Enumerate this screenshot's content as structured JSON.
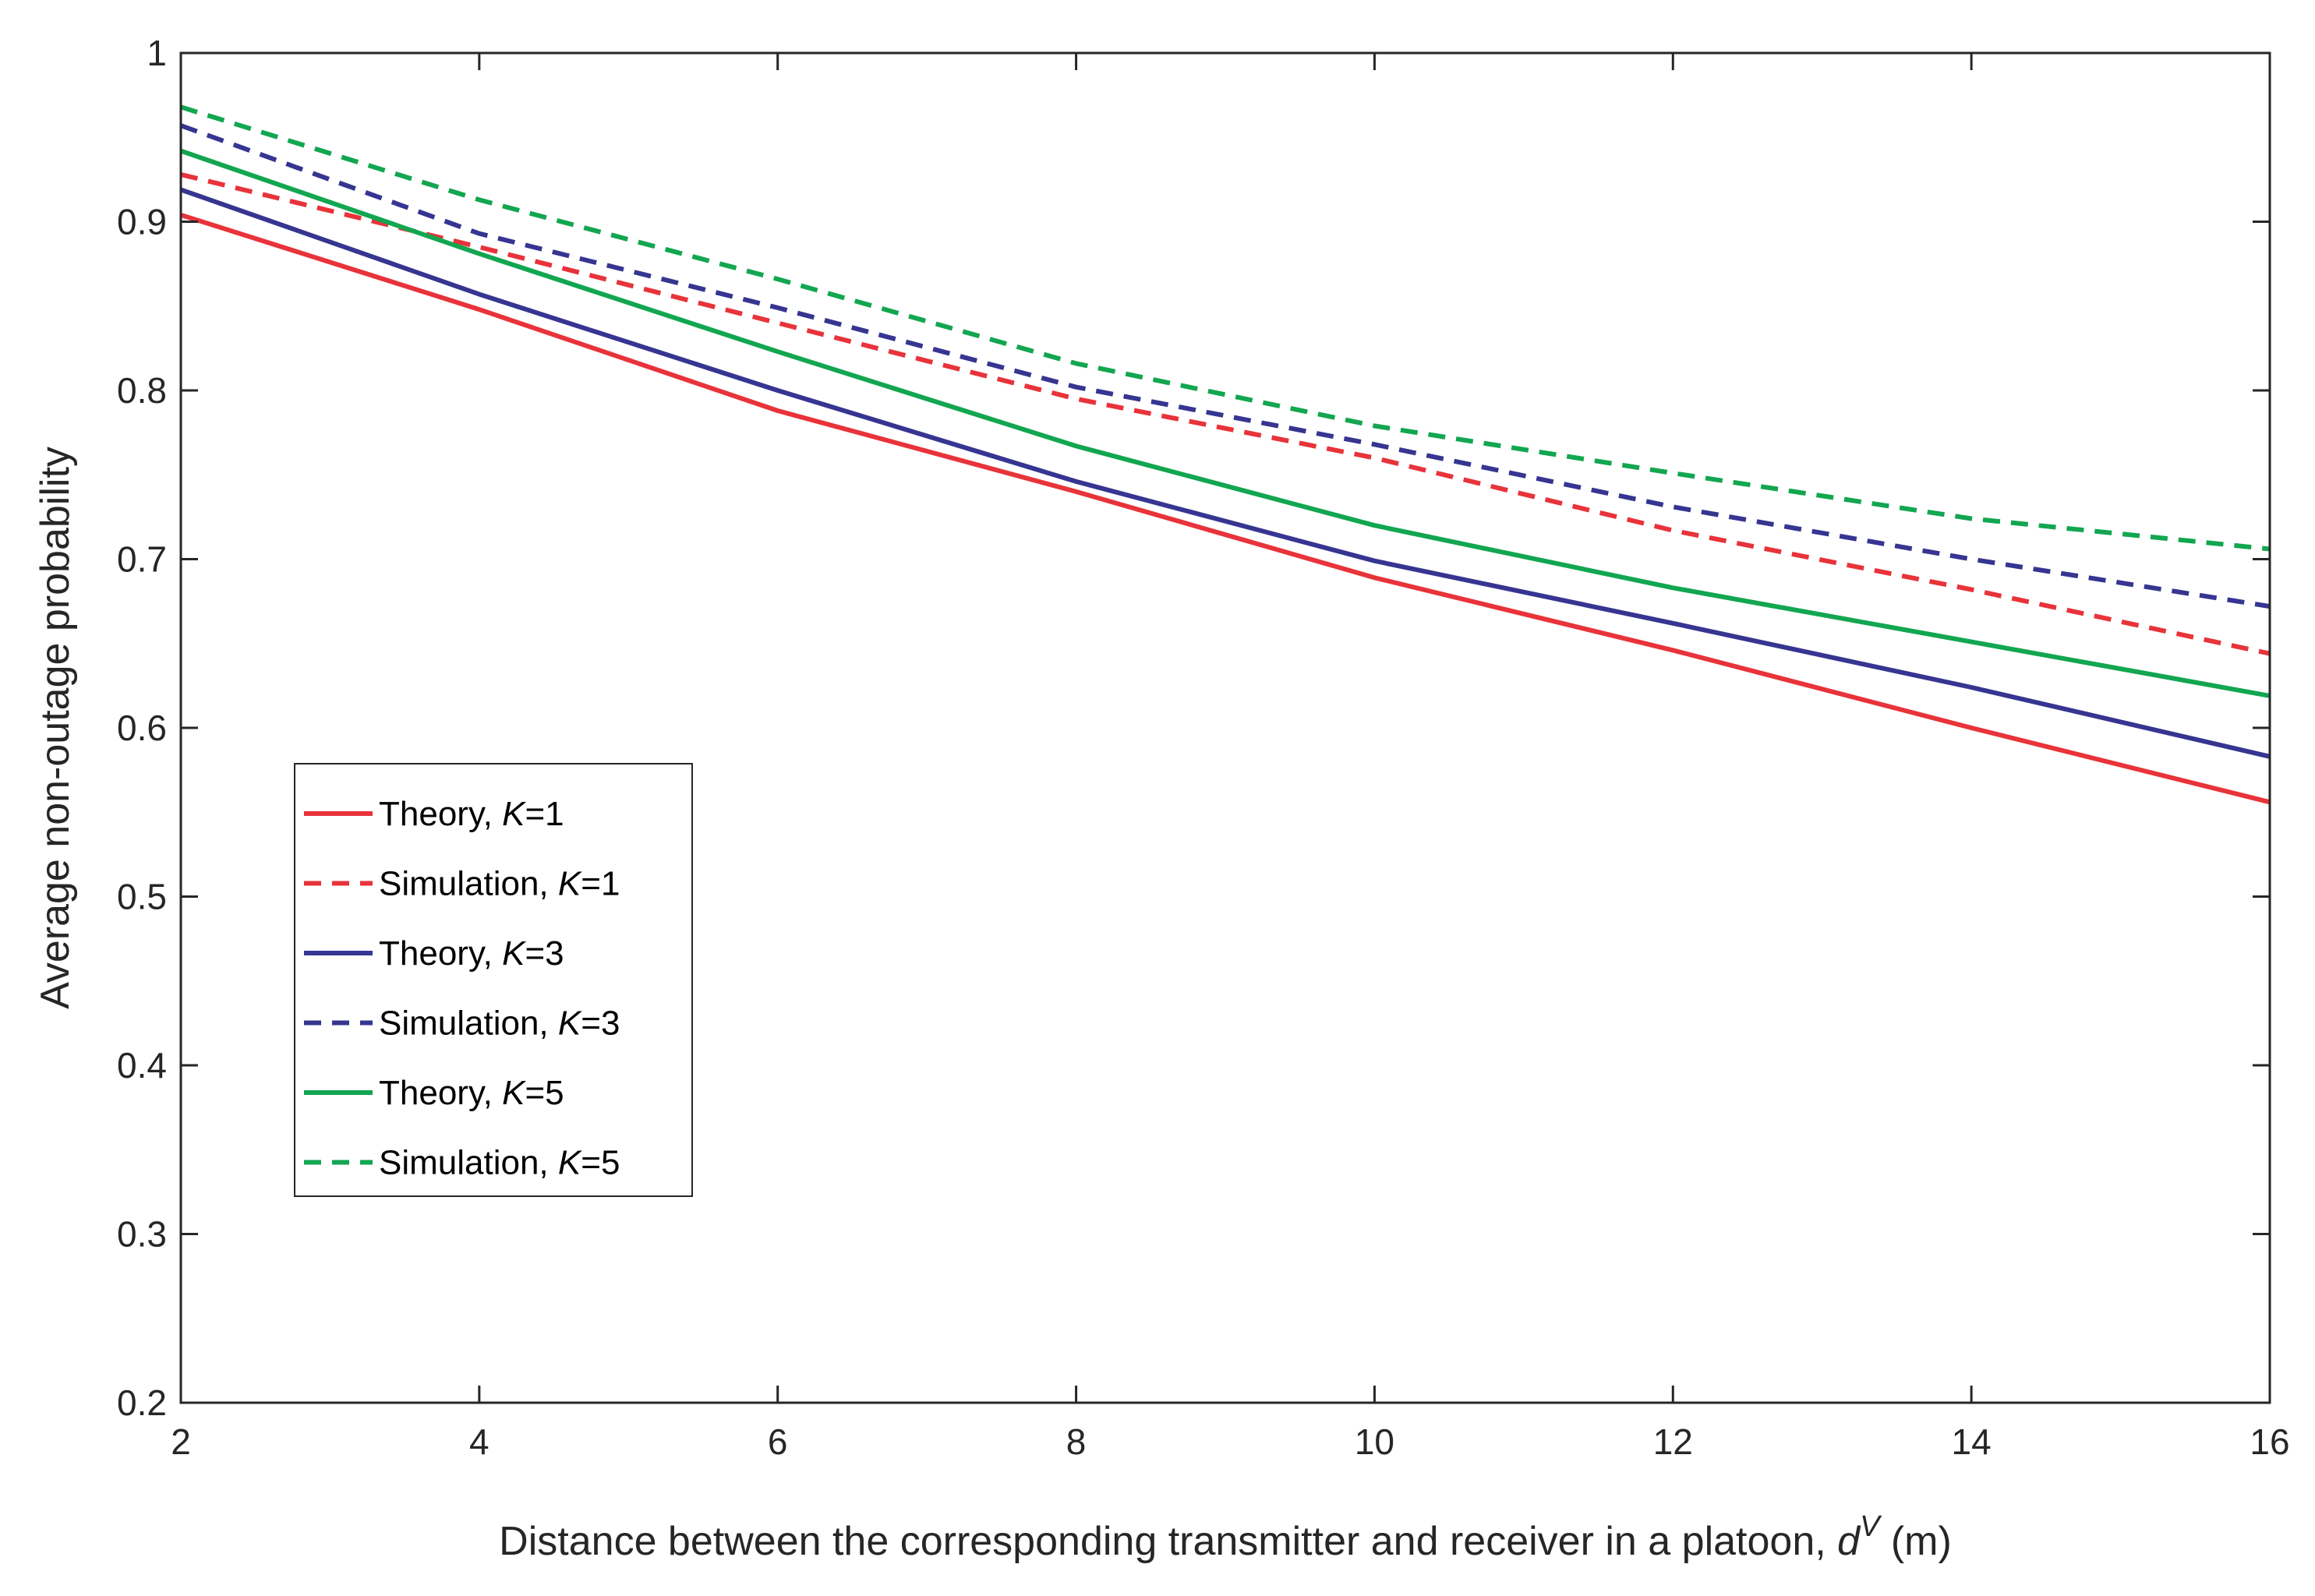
{
  "chart_data": {
    "type": "line",
    "title": "",
    "xlabel": {
      "prefix": "Distance between the corresponding transmitter and receiver in a platoon, ",
      "symbol": "d",
      "superscript": "V",
      "suffix": " (m)"
    },
    "ylabel": "Average non-outage probability",
    "xlim": [
      2,
      16
    ],
    "ylim": [
      0.2,
      1
    ],
    "xticks": [
      2,
      4,
      6,
      8,
      10,
      12,
      14,
      16
    ],
    "xtick_labels": [
      "2",
      "4",
      "6",
      "8",
      "10",
      "12",
      "14",
      "16"
    ],
    "yticks": [
      0.2,
      0.3,
      0.4,
      0.5,
      0.6,
      0.7,
      0.8,
      0.9,
      1
    ],
    "ytick_labels": [
      "0.2",
      "0.3",
      "0.4",
      "0.5",
      "0.6",
      "0.7",
      "0.8",
      "0.9",
      "1"
    ],
    "grid": false,
    "legend_position": "middle-left",
    "x": [
      2,
      4,
      6,
      8,
      10,
      12,
      14,
      16
    ],
    "series": [
      {
        "name": "Theory, K=1",
        "label_prefix": "Theory, ",
        "label_var": "K",
        "label_suffix": "=1",
        "color": "#e8333a",
        "style": "solid",
        "values": [
          0.904,
          0.848,
          0.788,
          0.74,
          0.689,
          0.646,
          0.6,
          0.556
        ]
      },
      {
        "name": "Simulation, K=1",
        "label_prefix": "Simulation, ",
        "label_var": "K",
        "label_suffix": "=1",
        "color": "#e8333a",
        "style": "dashed",
        "values": [
          0.928,
          0.885,
          0.84,
          0.795,
          0.76,
          0.717,
          0.682,
          0.644
        ]
      },
      {
        "name": "Theory, K=3",
        "label_prefix": "Theory, ",
        "label_var": "K",
        "label_suffix": "=3",
        "color": "#363591",
        "style": "solid",
        "values": [
          0.919,
          0.857,
          0.8,
          0.746,
          0.699,
          0.662,
          0.624,
          0.583
        ]
      },
      {
        "name": "Simulation, K=3",
        "label_prefix": "Simulation, ",
        "label_var": "K",
        "label_suffix": "=3",
        "color": "#363591",
        "style": "dashed",
        "values": [
          0.957,
          0.893,
          0.849,
          0.802,
          0.768,
          0.731,
          0.7,
          0.672
        ]
      },
      {
        "name": "Theory, K=5",
        "label_prefix": "Theory, ",
        "label_var": "K",
        "label_suffix": "=5",
        "color": "#12a650",
        "style": "solid",
        "values": [
          0.942,
          0.881,
          0.823,
          0.767,
          0.72,
          0.683,
          0.651,
          0.619
        ]
      },
      {
        "name": "Simulation, K=5",
        "label_prefix": "Simulation, ",
        "label_var": "K",
        "label_suffix": "=5",
        "color": "#12a650",
        "style": "dashed",
        "values": [
          0.968,
          0.913,
          0.866,
          0.816,
          0.779,
          0.751,
          0.724,
          0.706
        ]
      }
    ]
  }
}
